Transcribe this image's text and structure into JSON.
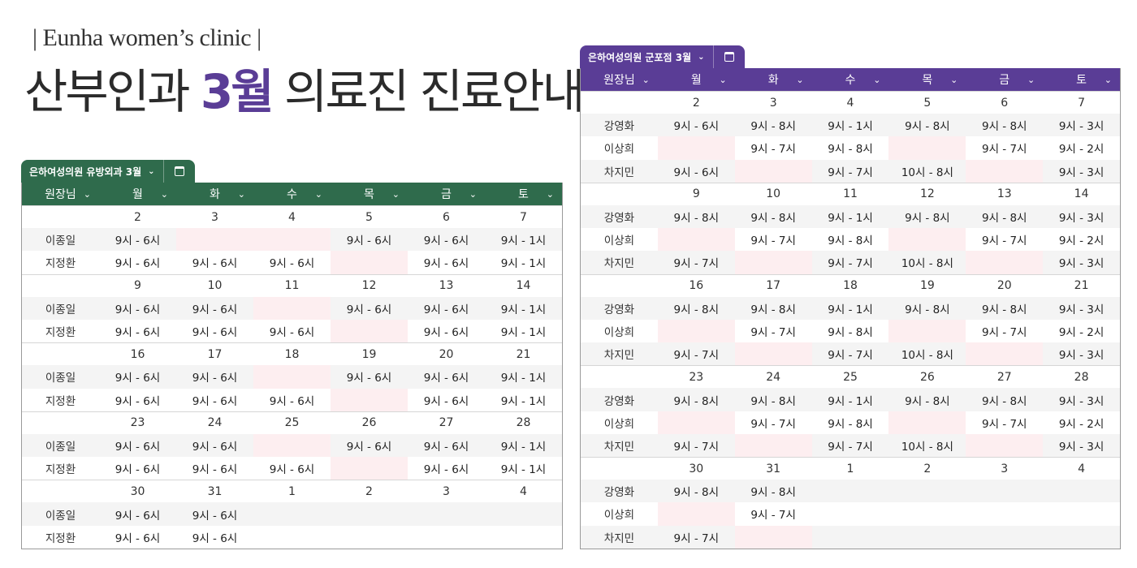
{
  "brand": "| Eunha women’s clinic |",
  "headline": {
    "before": "산부인과 ",
    "accent": "3월",
    "after": " 의료진 진료안내"
  },
  "colors": {
    "green": "#2f6b4c",
    "purple": "#5a3d96",
    "off_day": "#fdeef0"
  },
  "header_days": [
    "원장님",
    "월",
    "화",
    "수",
    "목",
    "금",
    "토"
  ],
  "calendar_icon": "calendar-icon",
  "left": {
    "tab_label": "은하여성의원 유방외과 3월",
    "weeks": [
      {
        "dates": [
          "2",
          "3",
          "4",
          "5",
          "6",
          "7"
        ],
        "red": [
          0
        ],
        "faded": [],
        "rows": [
          {
            "name": "이종일",
            "cells": [
              "9시 - 6시",
              "",
              "",
              "9시 - 6시",
              "9시 - 6시",
              "9시 - 1시"
            ]
          },
          {
            "name": "지정환",
            "cells": [
              "9시 - 6시",
              "9시 - 6시",
              "9시 - 6시",
              "",
              "9시 - 6시",
              "9시 - 1시"
            ]
          }
        ]
      },
      {
        "dates": [
          "9",
          "10",
          "11",
          "12",
          "13",
          "14"
        ],
        "red": [],
        "faded": [],
        "rows": [
          {
            "name": "이종일",
            "cells": [
              "9시 - 6시",
              "9시 - 6시",
              "",
              "9시 - 6시",
              "9시 - 6시",
              "9시 - 1시"
            ]
          },
          {
            "name": "지정환",
            "cells": [
              "9시 - 6시",
              "9시 - 6시",
              "9시 - 6시",
              "",
              "9시 - 6시",
              "9시 - 1시"
            ]
          }
        ]
      },
      {
        "dates": [
          "16",
          "17",
          "18",
          "19",
          "20",
          "21"
        ],
        "red": [],
        "faded": [],
        "rows": [
          {
            "name": "이종일",
            "cells": [
              "9시 - 6시",
              "9시 - 6시",
              "",
              "9시 - 6시",
              "9시 - 6시",
              "9시 - 1시"
            ]
          },
          {
            "name": "지정환",
            "cells": [
              "9시 - 6시",
              "9시 - 6시",
              "9시 - 6시",
              "",
              "9시 - 6시",
              "9시 - 1시"
            ]
          }
        ]
      },
      {
        "dates": [
          "23",
          "24",
          "25",
          "26",
          "27",
          "28"
        ],
        "red": [],
        "faded": [],
        "rows": [
          {
            "name": "이종일",
            "cells": [
              "9시 - 6시",
              "9시 - 6시",
              "",
              "9시 - 6시",
              "9시 - 6시",
              "9시 - 1시"
            ]
          },
          {
            "name": "지정환",
            "cells": [
              "9시 - 6시",
              "9시 - 6시",
              "9시 - 6시",
              "",
              "9시 - 6시",
              "9시 - 1시"
            ]
          }
        ]
      },
      {
        "dates": [
          "30",
          "31",
          "1",
          "2",
          "3",
          "4"
        ],
        "red": [],
        "faded": [
          2,
          3,
          4,
          5
        ],
        "rows": [
          {
            "name": "이종일",
            "cells": [
              "9시 - 6시",
              "9시 - 6시",
              null,
              null,
              null,
              null
            ]
          },
          {
            "name": "지정환",
            "cells": [
              "9시 - 6시",
              "9시 - 6시",
              null,
              null,
              null,
              null
            ]
          }
        ]
      }
    ]
  },
  "right": {
    "tab_label": "은하여성의원 군포점 3월",
    "weeks": [
      {
        "dates": [
          "2",
          "3",
          "4",
          "5",
          "6",
          "7"
        ],
        "red": [
          0
        ],
        "faded": [],
        "rows": [
          {
            "name": "강영화",
            "cells": [
              "9시 - 6시",
              "9시 - 8시",
              "9시 - 1시",
              "9시 - 8시",
              "9시 - 8시",
              "9시 - 3시"
            ]
          },
          {
            "name": "이상희",
            "cells": [
              "",
              "9시 - 7시",
              "9시 - 8시",
              "",
              "9시 - 7시",
              "9시 - 2시"
            ]
          },
          {
            "name": "차지민",
            "cells": [
              "9시 - 6시",
              "",
              "9시 - 7시",
              "10시 - 8시",
              "",
              "9시 - 3시"
            ]
          }
        ]
      },
      {
        "dates": [
          "9",
          "10",
          "11",
          "12",
          "13",
          "14"
        ],
        "red": [],
        "faded": [],
        "rows": [
          {
            "name": "강영화",
            "cells": [
              "9시 - 8시",
              "9시 - 8시",
              "9시 - 1시",
              "9시 - 8시",
              "9시 - 8시",
              "9시 - 3시"
            ]
          },
          {
            "name": "이상희",
            "cells": [
              "",
              "9시 - 7시",
              "9시 - 8시",
              "",
              "9시 - 7시",
              "9시 - 2시"
            ]
          },
          {
            "name": "차지민",
            "cells": [
              "9시 - 7시",
              "",
              "9시 - 7시",
              "10시 - 8시",
              "",
              "9시 - 3시"
            ]
          }
        ]
      },
      {
        "dates": [
          "16",
          "17",
          "18",
          "19",
          "20",
          "21"
        ],
        "red": [],
        "faded": [],
        "rows": [
          {
            "name": "강영화",
            "cells": [
              "9시 - 8시",
              "9시 - 8시",
              "9시 - 1시",
              "9시 - 8시",
              "9시 - 8시",
              "9시 - 3시"
            ]
          },
          {
            "name": "이상희",
            "cells": [
              "",
              "9시 - 7시",
              "9시 - 8시",
              "",
              "9시 - 7시",
              "9시 - 2시"
            ]
          },
          {
            "name": "차지민",
            "cells": [
              "9시 - 7시",
              "",
              "9시 - 7시",
              "10시 - 8시",
              "",
              "9시 - 3시"
            ]
          }
        ]
      },
      {
        "dates": [
          "23",
          "24",
          "25",
          "26",
          "27",
          "28"
        ],
        "red": [],
        "faded": [],
        "rows": [
          {
            "name": "강영화",
            "cells": [
              "9시 - 8시",
              "9시 - 8시",
              "9시 - 1시",
              "9시 - 8시",
              "9시 - 8시",
              "9시 - 3시"
            ]
          },
          {
            "name": "이상희",
            "cells": [
              "",
              "9시 - 7시",
              "9시 - 8시",
              "",
              "9시 - 7시",
              "9시 - 2시"
            ]
          },
          {
            "name": "차지민",
            "cells": [
              "9시 - 7시",
              "",
              "9시 - 7시",
              "10시 - 8시",
              "",
              "9시 - 3시"
            ]
          }
        ]
      },
      {
        "dates": [
          "30",
          "31",
          "1",
          "2",
          "3",
          "4"
        ],
        "red": [],
        "faded": [
          2,
          3,
          4,
          5
        ],
        "rows": [
          {
            "name": "강영화",
            "cells": [
              "9시 - 8시",
              "9시 - 8시",
              null,
              null,
              null,
              null
            ]
          },
          {
            "name": "이상희",
            "cells": [
              "",
              "9시 - 7시",
              null,
              null,
              null,
              null
            ]
          },
          {
            "name": "차지민",
            "cells": [
              "9시 - 7시",
              "",
              null,
              null,
              null,
              null
            ]
          }
        ]
      }
    ]
  }
}
